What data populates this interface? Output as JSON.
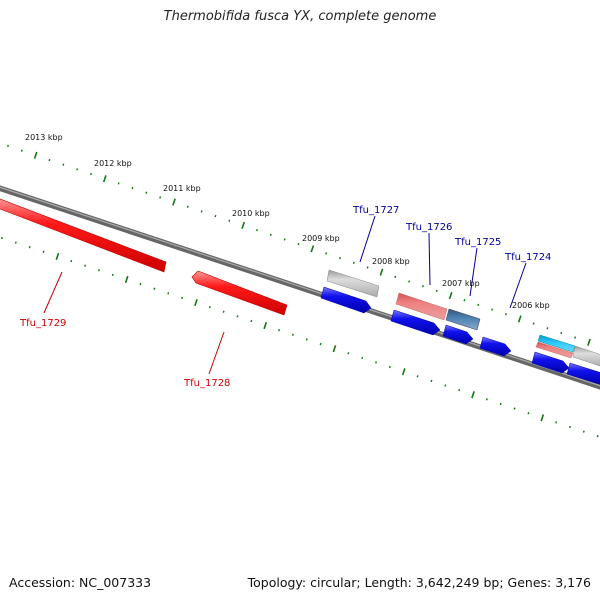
{
  "title": "Thermobifida fusca YX, complete genome",
  "footer": {
    "accession": "Accession: NC_007333",
    "topology": "Topology: circular; Length: 3,642,249 bp; Genes: 3,176"
  },
  "scale_labels": [
    "2013 kbp",
    "2012 kbp",
    "2011 kbp",
    "2010 kbp",
    "2009 kbp",
    "2008 kbp",
    "2007 kbp",
    "2006 kbp"
  ],
  "gene_labels": {
    "reverse": [
      "Tfu_1729",
      "Tfu_1728"
    ],
    "forward": [
      "Tfu_1727",
      "Tfu_1726",
      "Tfu_1725",
      "Tfu_1724"
    ]
  },
  "colors": {
    "reverse_cds": "#ff0000",
    "forward_cds": "#0000ee",
    "backbone": "#777777",
    "ticks": "#117711",
    "reverse_label": "#cc0000",
    "forward_label": "#000099",
    "light_blue_feature": "#22bbee",
    "grey_feature": "#bbbbbb",
    "pink_feature": "#ee7777",
    "steel_feature": "#4477aa"
  }
}
